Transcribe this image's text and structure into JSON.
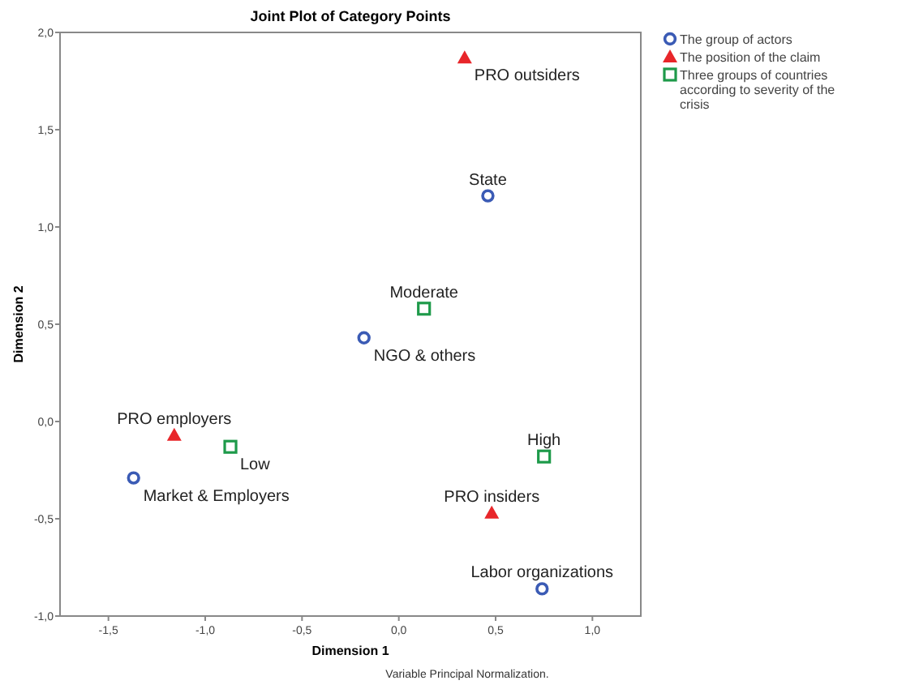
{
  "chart_data": {
    "type": "scatter",
    "title": "Joint Plot of Category Points",
    "xlabel": "Dimension 1",
    "ylabel": "Dimension 2",
    "xlim": [
      -1.75,
      1.25
    ],
    "ylim": [
      -1,
      2
    ],
    "xticks": [
      {
        "value": -1.5,
        "label": "-1,5"
      },
      {
        "value": -1,
        "label": "-1,0"
      },
      {
        "value": -0.5,
        "label": "-0,5"
      },
      {
        "value": 0,
        "label": "0,0"
      },
      {
        "value": 0.5,
        "label": "0,5"
      },
      {
        "value": 1,
        "label": "1,0"
      }
    ],
    "yticks": [
      {
        "value": -1,
        "label": "-1,0"
      },
      {
        "value": -0.5,
        "label": "-0,5"
      },
      {
        "value": 0,
        "label": "0,0"
      },
      {
        "value": 0.5,
        "label": "0,5"
      },
      {
        "value": 1,
        "label": "1,0"
      },
      {
        "value": 1.5,
        "label": "1,5"
      },
      {
        "value": 2,
        "label": "2,0"
      }
    ],
    "grid": false,
    "legend": "right",
    "series": [
      {
        "name": "The group of actors",
        "color": "#3b5bb5",
        "marker": "circle",
        "x": [
          0.46,
          -0.18,
          -1.37,
          0.74
        ],
        "values": [
          1.16,
          0.43,
          -0.29,
          -0.86
        ]
      },
      {
        "name": "The position of the claim",
        "color": "#e8262a",
        "marker": "triangle",
        "x": [
          0.34,
          -1.16,
          0.48
        ],
        "values": [
          1.87,
          -0.07,
          -0.47
        ]
      },
      {
        "name": "Three groups of countries according to severity of the crisis",
        "color": "#1e9a4a",
        "marker": "square",
        "x": [
          0.13,
          -0.87,
          0.75
        ],
        "values": [
          0.58,
          -0.13,
          -0.18
        ]
      }
    ],
    "annotations": [
      {
        "text": "State",
        "x": 0.46,
        "y": 1.16
      },
      {
        "text": "NGO & others",
        "x": -0.18,
        "y": 0.43
      },
      {
        "text": "Market & Employers",
        "x": -1.37,
        "y": -0.29
      },
      {
        "text": "Labor organizations",
        "x": 0.74,
        "y": -0.86
      },
      {
        "text": "PRO outsiders",
        "x": 0.34,
        "y": 1.87
      },
      {
        "text": "PRO employers",
        "x": -1.16,
        "y": -0.07
      },
      {
        "text": "PRO insiders",
        "x": 0.48,
        "y": -0.47
      },
      {
        "text": "Moderate",
        "x": 0.13,
        "y": 0.58
      },
      {
        "text": "Low",
        "x": -0.87,
        "y": -0.13
      },
      {
        "text": "High",
        "x": 0.75,
        "y": -0.18
      },
      "Variable Principal Normalization."
    ]
  }
}
